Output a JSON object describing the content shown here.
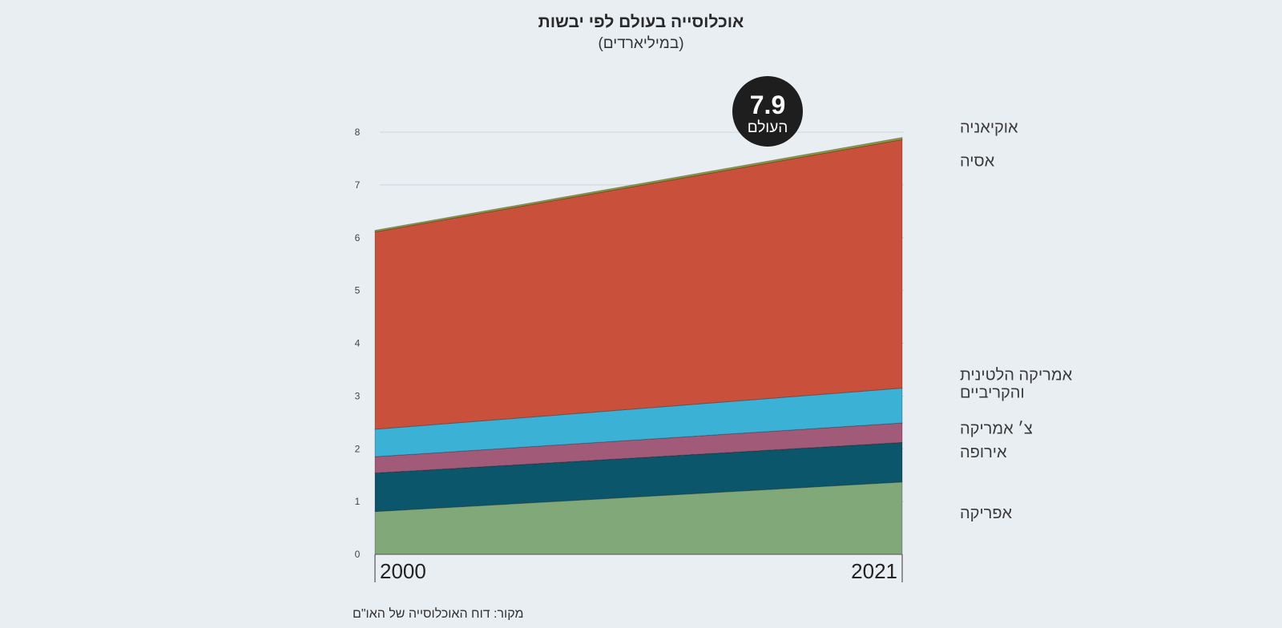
{
  "page": {
    "title": "אוכלוסייה בעולם לפי יבשות",
    "subtitle": "(במיליארדים)",
    "source": "מקור: דוח האוכלוסייה של האו\"ם"
  },
  "badge": {
    "value": "7.9",
    "label": "העולם"
  },
  "chart_data": {
    "type": "area",
    "stacked": true,
    "x": [
      "2000",
      "2021"
    ],
    "ylim": [
      0,
      8
    ],
    "yticks": [
      0,
      1,
      2,
      3,
      4,
      5,
      6,
      7,
      8
    ],
    "grid": true,
    "series": [
      {
        "name": "אפריקה",
        "values": [
          0.81,
          1.37
        ],
        "color": "#80a878",
        "label_lines": [
          "אפריקה"
        ]
      },
      {
        "name": "אירופה",
        "values": [
          0.73,
          0.75
        ],
        "color": "#0b566b",
        "label_lines": [
          "אירופה"
        ]
      },
      {
        "name": "צ׳ אמריקה",
        "values": [
          0.31,
          0.37
        ],
        "color": "#a15a78",
        "label_lines": [
          "צ׳ אמריקה"
        ]
      },
      {
        "name": "אמריקה הלטינית והקריביים",
        "values": [
          0.52,
          0.66
        ],
        "color": "#3cb1d6",
        "label_lines": [
          "אמריקה הלטינית",
          "והקריביים"
        ]
      },
      {
        "name": "אסיה",
        "values": [
          3.74,
          4.71
        ],
        "color": "#c9503b",
        "label_lines": [
          "אסיה"
        ]
      },
      {
        "name": "אוקיאניה",
        "values": [
          0.03,
          0.04
        ],
        "color": "#8f9a3c",
        "label_lines": [
          "אוקיאניה"
        ]
      }
    ]
  }
}
